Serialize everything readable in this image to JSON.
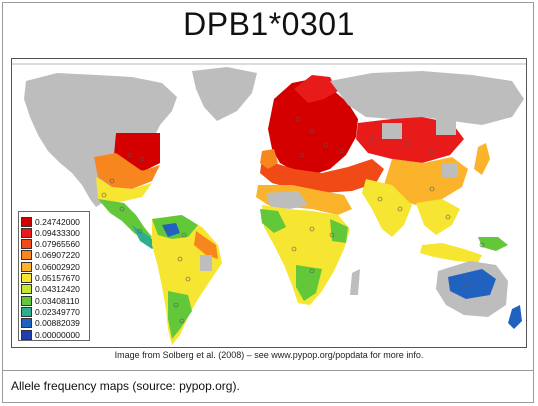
{
  "title": "DPB1*0301",
  "credit": "Image from Solberg et al. (2008) – see www.pypop.org/popdata for more info.",
  "caption": "Allele frequency maps (source: pypop.org).",
  "legend": {
    "items": [
      {
        "label": "0.24742000",
        "color": "#d40000"
      },
      {
        "label": "0.09433300",
        "color": "#e81b1b"
      },
      {
        "label": "0.07965560",
        "color": "#f04a16"
      },
      {
        "label": "0.06907220",
        "color": "#f7861f"
      },
      {
        "label": "0.06002920",
        "color": "#fbb32b"
      },
      {
        "label": "0.05157670",
        "color": "#f6e531"
      },
      {
        "label": "0.04312420",
        "color": "#c6e62f"
      },
      {
        "label": "0.03408110",
        "color": "#62c83a"
      },
      {
        "label": "0.02349770",
        "color": "#2fae8f"
      },
      {
        "label": "0.00882039",
        "color": "#2162c0"
      },
      {
        "label": "0.00000000",
        "color": "#1d3fb0"
      }
    ]
  },
  "colors": {
    "no_data": "#bdbdbd",
    "ocean": "#ffffff"
  }
}
